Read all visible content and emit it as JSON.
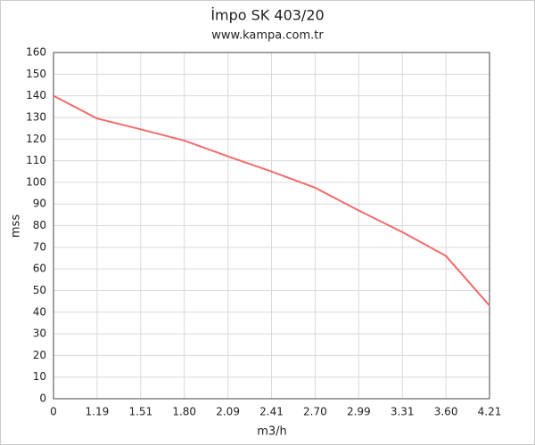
{
  "chart_data": {
    "type": "line",
    "title": "İmpo SK 403/20",
    "subtitle": "www.kampa.com.tr",
    "x_label": "m3/h",
    "y_label": "mss",
    "categories": [
      "0",
      "1.19",
      "1.51",
      "1.80",
      "2.09",
      "2.41",
      "2.70",
      "2.99",
      "3.31",
      "3.60",
      "4.21"
    ],
    "values": [
      140,
      129.5,
      124.5,
      119.3,
      112,
      105,
      97.5,
      87,
      77,
      66,
      43
    ],
    "color": "#f26b6b",
    "ylim": [
      0,
      160
    ],
    "yticks": [
      0,
      10,
      20,
      30,
      40,
      50,
      60,
      70,
      80,
      90,
      100,
      110,
      120,
      130,
      140,
      150,
      160
    ],
    "grid": true
  }
}
